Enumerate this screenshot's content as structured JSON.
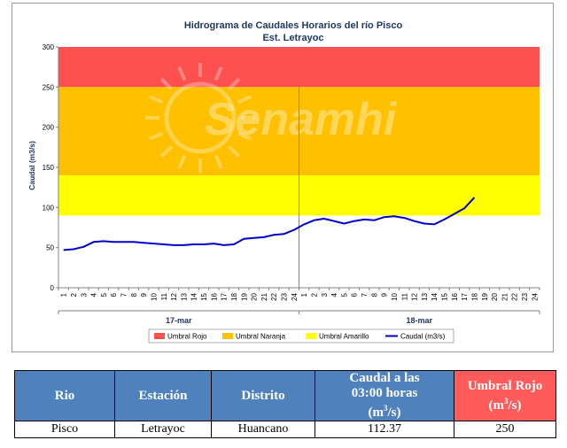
{
  "chart_data": {
    "type": "line",
    "title": "Hidrograma de Caudales Horarios del río Pisco",
    "subtitle": "Est. Letrayoc",
    "ylabel": "Caudal  (m3/s)",
    "ylim": [
      0,
      300
    ],
    "yticks": [
      "0",
      "50",
      "100",
      "150",
      "200",
      "250",
      "300"
    ],
    "xticks": [
      "1",
      "2",
      "3",
      "4",
      "5",
      "6",
      "7",
      "8",
      "9",
      "10",
      "11",
      "12",
      "13",
      "14",
      "15",
      "16",
      "17",
      "18",
      "19",
      "20",
      "21",
      "22",
      "23",
      "24",
      "1",
      "2",
      "3",
      "4",
      "5",
      "6",
      "7",
      "8",
      "9",
      "10",
      "11",
      "12",
      "13",
      "14",
      "15",
      "16",
      "17",
      "18",
      "19",
      "20",
      "21",
      "22",
      "23",
      "24"
    ],
    "day_labels": [
      "17-mar",
      "18-mar"
    ],
    "bands": [
      {
        "name": "Umbral Rojo",
        "from": 250,
        "to": 300,
        "color": "#ff5050"
      },
      {
        "name": "Umbral Naranja",
        "from": 140,
        "to": 250,
        "color": "#ffc000"
      },
      {
        "name": "Umbral Amarillo",
        "from": 90,
        "to": 140,
        "color": "#ffff00"
      }
    ],
    "series": [
      {
        "name": "Caudal (m3/s)",
        "color": "#0000cc",
        "values": [
          47,
          48,
          51,
          57,
          58,
          57,
          57,
          57,
          56,
          55,
          54,
          53,
          53,
          54,
          54,
          55,
          53,
          54,
          61,
          62,
          63,
          66,
          67,
          72,
          79,
          84,
          86,
          83,
          80,
          83,
          85,
          84,
          88,
          89,
          87,
          83,
          80,
          79,
          85,
          92,
          99,
          112.37
        ]
      }
    ],
    "legend": [
      "Umbral Rojo",
      "Umbral Naranja",
      "Umbral Amarillo",
      "Caudal (m3/s)"
    ],
    "legend_position": "bottom",
    "grid": false,
    "watermark": "Senamhi"
  },
  "table": {
    "headers": {
      "rio": "Rio",
      "estacion": "Estación",
      "distrito": "Distrito",
      "caudal_line1": "Caudal a las",
      "caudal_line2": "03:00 horas",
      "caudal_unit": "(m",
      "caudal_sup": "3",
      "caudal_unit_end": "/s)",
      "umbral_line1": "Umbral Rojo",
      "umbral_unit": "(m",
      "umbral_sup": "3",
      "umbral_unit_end": "/s)"
    },
    "row": {
      "rio": "Pisco",
      "estacion": "Letrayoc",
      "distrito": "Huancano",
      "caudal": "112.37",
      "umbral": "250"
    }
  }
}
